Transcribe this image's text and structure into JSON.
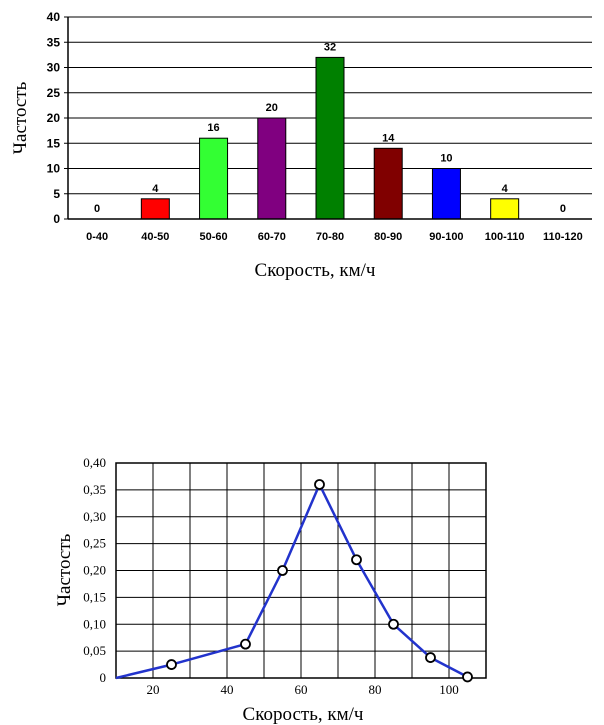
{
  "chart_data": [
    {
      "type": "bar",
      "ylabel": "Частость",
      "xlabel": "Скорость, км/ч",
      "categories": [
        "0-40",
        "40-50",
        "50-60",
        "60-70",
        "70-80",
        "80-90",
        "90-100",
        "100-110",
        "110-120"
      ],
      "values": [
        0,
        4,
        16,
        20,
        32,
        14,
        10,
        4,
        0
      ],
      "data_labels": [
        "0",
        "4",
        "16",
        "20",
        "32",
        "14",
        "10",
        "4",
        "0"
      ],
      "colors": [
        "#ffffff",
        "#ff0000",
        "#33ff33",
        "#800080",
        "#008000",
        "#800000",
        "#0000ff",
        "#ffff00",
        "#ffffff"
      ],
      "ylim": [
        0,
        40
      ],
      "yticks": [
        "0",
        "5",
        "10",
        "15",
        "20",
        "25",
        "30",
        "35",
        "40"
      ],
      "grid": "horizontal"
    },
    {
      "type": "line",
      "ylabel": "Частость",
      "xlabel": "Скорость, км/ч",
      "series": [
        {
          "x": [
            10,
            25,
            45,
            55,
            65,
            75,
            85,
            95,
            105
          ],
          "y": [
            0,
            0.025,
            0.063,
            0.2,
            0.36,
            0.22,
            0.1,
            0.038,
            0.002
          ]
        }
      ],
      "line_color": "#2233cc",
      "xlim": [
        10,
        110
      ],
      "ylim": [
        0,
        0.4
      ],
      "xticks": [
        "20",
        "40",
        "60",
        "80",
        "100"
      ],
      "yticks": [
        "0",
        "0,05",
        "0,10",
        "0,15",
        "0,20",
        "0,25",
        "0,30",
        "0,35",
        "0,40"
      ],
      "grid": "both"
    }
  ]
}
